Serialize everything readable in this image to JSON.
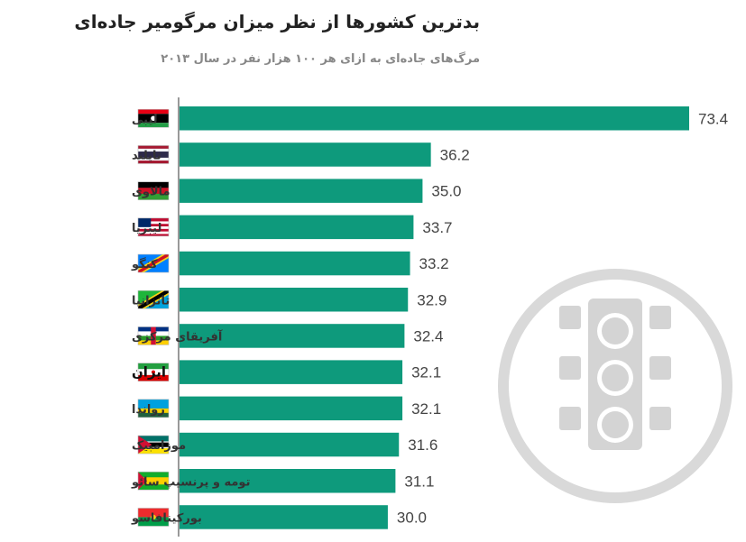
{
  "title": "بدترین کشورها از نظر میزان مرگومیر جاده‌ای",
  "subtitle": "مرگ‌های جاده‌ای به ازای هر ۱۰۰ هزار نفر در سال ۲۰۱۳",
  "colors": {
    "bar": "#0e9a7c",
    "decoration": "#d9d9d9"
  },
  "decoration_icon": "traffic-light-icon",
  "chart_data": {
    "type": "bar",
    "orientation": "horizontal",
    "title": "بدترین کشورها از نظر میزان مرگومیر جاده‌ای",
    "subtitle": "مرگ‌های جاده‌ای به ازای هر ۱۰۰ هزار نفر در سال ۲۰۱۳",
    "categories": [
      "لیبی",
      "تایلند",
      "مالاوی",
      "لیبریا",
      "کنگو",
      "تانزانیا",
      "آفریقای مرکزی",
      "ایران",
      "رواندا",
      "موزامبیک",
      "تومه و پرنسیپ سائو",
      "بورکینافاسو"
    ],
    "values": [
      73.4,
      36.2,
      35.0,
      33.7,
      33.2,
      32.9,
      32.4,
      32.1,
      32.1,
      31.6,
      31.1,
      30.0
    ],
    "value_labels": [
      "73.4",
      "36.2",
      "35.0",
      "33.7",
      "33.2",
      "32.9",
      "32.4",
      "32.1",
      "32.1",
      "31.6",
      "31.1",
      "30.0"
    ],
    "highlight": "ایران",
    "flags": [
      "libya-flag-icon",
      "thailand-flag-icon",
      "malawi-flag-icon",
      "liberia-flag-icon",
      "congo-flag-icon",
      "tanzania-flag-icon",
      "central-african-republic-flag-icon",
      "iran-flag-icon",
      "rwanda-flag-icon",
      "mozambique-flag-icon",
      "sao-tome-flag-icon",
      "burkina-faso-flag-icon"
    ],
    "xlim": [
      0,
      73.4
    ],
    "grid": false,
    "legend": "none"
  }
}
